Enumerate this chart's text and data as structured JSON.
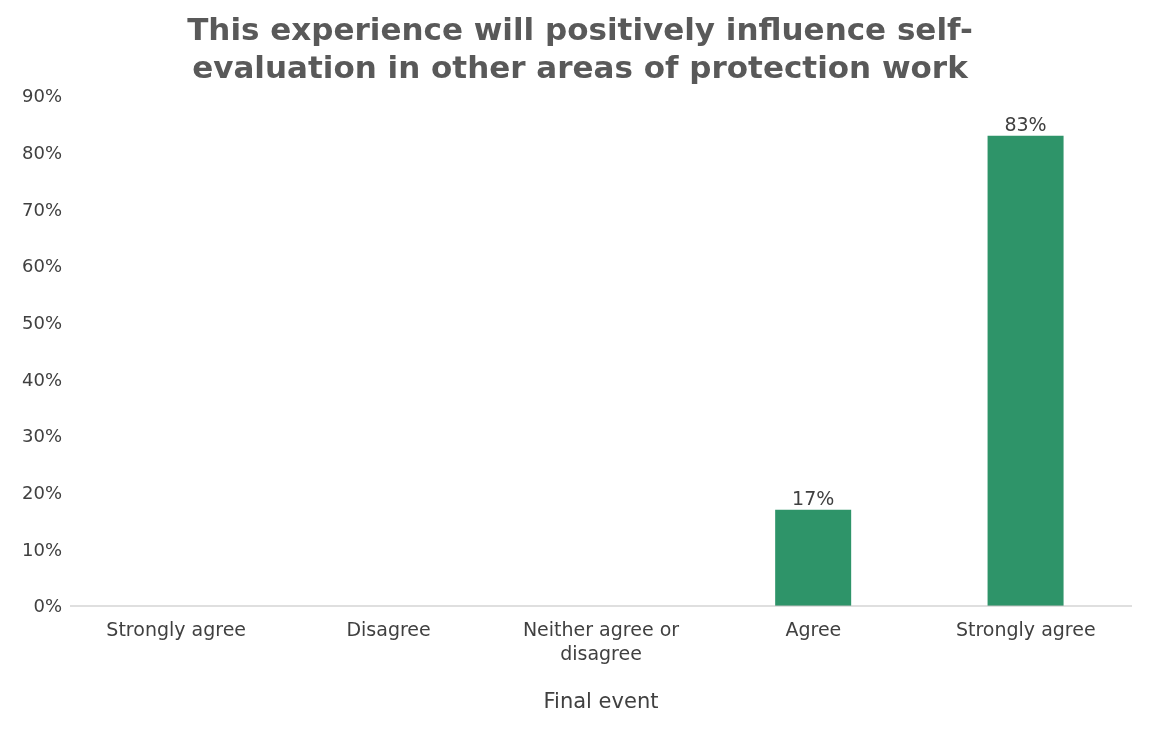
{
  "chart_data": {
    "type": "bar",
    "title": "This experience will positively influence self-evaluation in other areas of protection work",
    "xlabel": "Final event",
    "categories": [
      "Strongly agree",
      "Disagree",
      "Neither agree or disagree",
      "Agree",
      "Strongly agree"
    ],
    "values": [
      0,
      0,
      0,
      17,
      83
    ],
    "value_labels": [
      null,
      null,
      null,
      "17%",
      "83%"
    ],
    "color": "#2e9469",
    "ylim": [
      0,
      90
    ],
    "yticks": [
      {
        "value": 0,
        "label": "0%"
      },
      {
        "value": 10,
        "label": "10%"
      },
      {
        "value": 20,
        "label": "20%"
      },
      {
        "value": 30,
        "label": "30%"
      },
      {
        "value": 40,
        "label": "40%"
      },
      {
        "value": 50,
        "label": "50%"
      },
      {
        "value": 60,
        "label": "60%"
      },
      {
        "value": 70,
        "label": "70%"
      },
      {
        "value": 80,
        "label": "80%"
      },
      {
        "value": 90,
        "label": "90%"
      }
    ],
    "grid": false,
    "legend": false
  }
}
